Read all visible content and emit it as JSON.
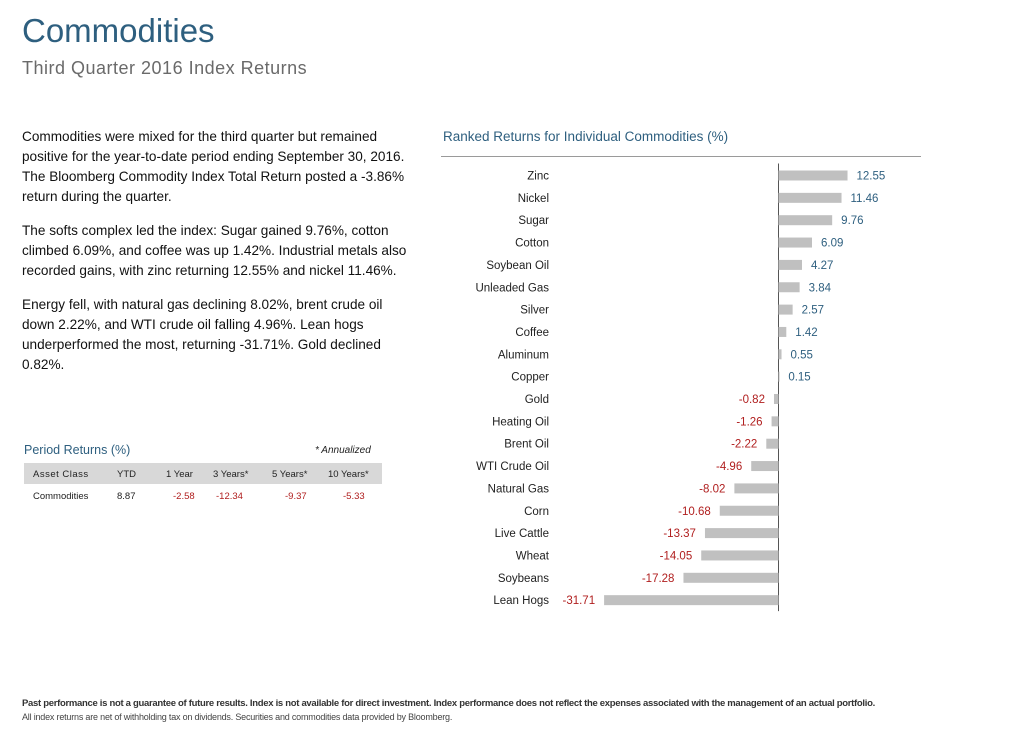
{
  "header": {
    "title": "Commodities",
    "subtitle": "Third Quarter 2016 Index Returns"
  },
  "body": {
    "paragraphs": [
      "Commodities were mixed for the third quarter but remained positive for the year-to-date period ending September 30, 2016. The Bloomberg Commodity Index Total Return posted a -3.86% return during the quarter.",
      "The softs complex led the index: Sugar gained 9.76%, cotton climbed 6.09%, and coffee was up 1.42%. Industrial metals also recorded gains, with zinc returning 12.55% and nickel 11.46%.",
      "Energy fell, with natural gas declining 8.02%, brent crude oil down 2.22%, and WTI crude oil falling 4.96%. Lean hogs underperformed the most, returning -31.71%. Gold declined 0.82%."
    ]
  },
  "period_returns": {
    "title": "Period Returns (%)",
    "note": "* Annualized",
    "headers": [
      "Asset Class",
      "YTD",
      "1 Year",
      "3 Years*",
      "5 Years*",
      "10 Years*"
    ],
    "row": [
      "Commodities",
      "8.87",
      "-2.58",
      "-12.34",
      "-9.37",
      "-5.33"
    ]
  },
  "chart_data": {
    "type": "bar",
    "orientation": "horizontal",
    "title": "Ranked Returns for Individual Commodities (%)",
    "categories": [
      "Zinc",
      "Nickel",
      "Sugar",
      "Cotton",
      "Soybean Oil",
      "Unleaded Gas",
      "Silver",
      "Coffee",
      "Aluminum",
      "Copper",
      "Gold",
      "Heating Oil",
      "Brent Oil",
      "WTI Crude Oil",
      "Natural Gas",
      "Corn",
      "Live Cattle",
      "Wheat",
      "Soybeans",
      "Lean Hogs"
    ],
    "values": [
      12.55,
      11.46,
      9.76,
      6.09,
      4.27,
      3.84,
      2.57,
      1.42,
      0.55,
      0.15,
      -0.82,
      -1.26,
      -2.22,
      -4.96,
      -8.02,
      -10.68,
      -13.37,
      -14.05,
      -17.28,
      -31.71
    ],
    "labels": [
      "12.55",
      "11.46",
      "9.76",
      "6.09",
      "4.27",
      "3.84",
      "2.57",
      "1.42",
      "0.55",
      "0.15",
      "-0.82",
      "-1.26",
      "-2.22",
      "-4.96",
      "-8.02",
      "-10.68",
      "-13.37",
      "-14.05",
      "-17.28",
      "-31.71"
    ],
    "bar_color": "#c0c0c0",
    "positive_label_color": "#2e5f7f",
    "negative_label_color": "#b01e1e",
    "grid": false
  },
  "footer": {
    "line1": "Past performance is not a guarantee of future results. Index is not available for direct investment. Index performance does not reflect the expenses associated with the management of an actual portfolio.",
    "line2": "All index returns are net of withholding tax on dividends. Securities and commodities data provided by Bloomberg."
  }
}
